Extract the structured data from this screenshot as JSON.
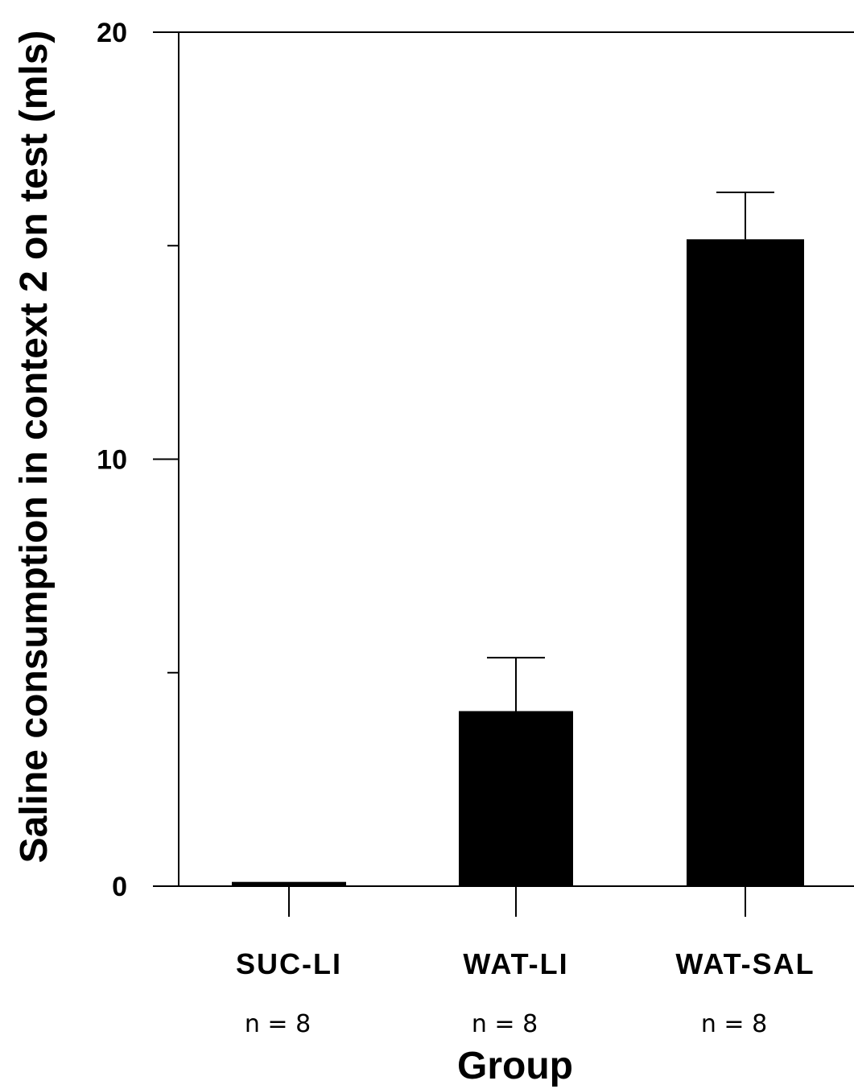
{
  "chart_data": {
    "type": "bar",
    "title": "",
    "xlabel": "Group",
    "ylabel": "Saline consumption in context 2 on test (mls)",
    "categories": [
      "SUC-LI",
      "WAT-LI",
      "WAT-SAL"
    ],
    "annotations": [
      "n = 8",
      "n = 8",
      "n = 8"
    ],
    "values": [
      0.1,
      4.1,
      15.15
    ],
    "error_upper": [
      0,
      1.25,
      1.1
    ],
    "ylim": [
      0,
      20
    ],
    "y_tick_labels": [
      "0",
      "10",
      "20"
    ],
    "y_minor_ticks": [
      5,
      15
    ],
    "grid": false,
    "bar_color": "#000000"
  }
}
